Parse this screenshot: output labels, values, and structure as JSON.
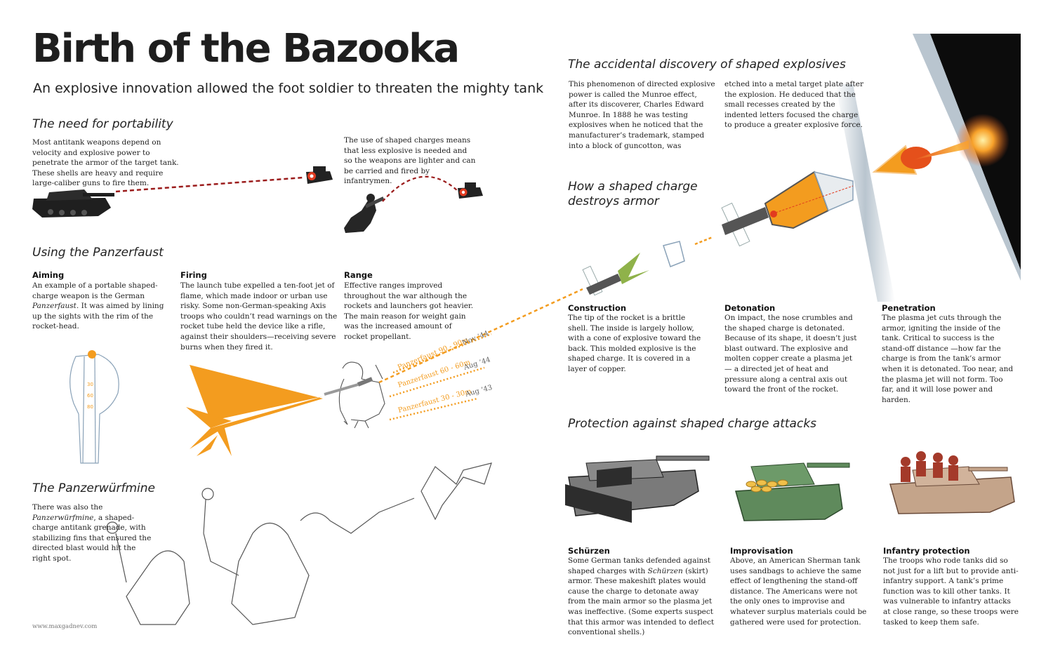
{
  "header": {
    "title": "Birth of the Bazooka",
    "subtitle": "An explosive innovation allowed the foot soldier to threaten the mighty tank"
  },
  "portability": {
    "heading": "The need for portability",
    "text1": "Most antitank weapons depend on velocity and explosive power to penetrate the armor of the target tank. These shells are heavy and require large-caliber guns to fire them.",
    "text2": "The use of shaped charges means that less explosive is needed and so the weapons are lighter and can be carried and fired by infantrymen."
  },
  "panzerfaust": {
    "heading": "Using the Panzerfaust",
    "aiming": {
      "label": "Aiming",
      "text_pre": "An example of a portable shaped-charge weapon is the German ",
      "text_em": "Panzerfaust",
      "text_post": ". It was aimed by lining up the sights with the rim of the rocket-head."
    },
    "firing": {
      "label": "Firing",
      "text": "The launch tube expelled a ten-foot jet of flame, which made indoor or urban use risky. Some non-German-speaking Axis troops who couldn’t read warnings on the rocket tube held the device like a rifle, against their shoulders—receiving severe burns when they fired it."
    },
    "range": {
      "label": "Range",
      "text": "Effective ranges improved throughout the war although the rockets and launchers got heavier. The main reason for weight gain was the increased amount of rocket propellant."
    },
    "range_lines": [
      {
        "label": "Panzerfaust 90 - 90m",
        "date": "Nov ’44"
      },
      {
        "label": "Panzerfaust 60 - 60m",
        "date": "Aug ’44"
      },
      {
        "label": "Panzerfaust 30 - 30m",
        "date": "Aug ’43"
      }
    ],
    "sight_marks": [
      "30",
      "60",
      "80"
    ]
  },
  "wurfmine": {
    "heading": "The Panzerwürfmine",
    "text_pre": "There was also the ",
    "text_em": "Panzerwürfmine",
    "text_post": ", a shaped-charge antitank grenade, with stabilizing fins that ensured the directed blast would hit the right spot."
  },
  "credit": "www.maxgadnev.com",
  "discovery": {
    "heading": "The accidental discovery of shaped explosives",
    "col1": "This phenomenon of directed explosive power is called the Munroe effect, after its discoverer, Charles Edward Munroe. In 1888 he was testing explosives when he noticed that the manufacturer’s trademark, stamped into a block of guncotton, was",
    "col2": "etched into a metal target plate after the explosion. He deduced that the small recesses created by the indented letters focused the charge to produce a greater explosive force."
  },
  "shaped": {
    "heading": "How a shaped charge destroys armor",
    "construction": {
      "label": "Construction",
      "text": "The tip of the rocket is a brittle shell. The inside is largely hollow, with a cone of explosive toward the back. This molded explosive is the shaped charge. It is covered in a layer of copper."
    },
    "detonation": {
      "label": "Detonation",
      "text": "On impact, the nose crumbles and the shaped charge is detonated. Because of its shape, it doesn’t just blast outward. The explosive and molten copper create a plasma jet — a directed jet of heat and pressure along a central axis out toward the front of the rocket."
    },
    "penetration": {
      "label": "Penetration",
      "text": "The plasma jet cuts through the armor, igniting the inside of the tank. Critical to success is the stand-off distance —how far the charge is from the tank’s armor when it is detonated. Too near, and the plasma jet will not form. Too far, and it will lose power and harden."
    }
  },
  "protection": {
    "heading": "Protection against shaped charge attacks",
    "schurzen": {
      "label": "Schürzen",
      "text_pre": "Some German tanks defended against shaped charges with ",
      "text_em": "Schürzen",
      "text_post": " (skirt) armor. These makeshift plates would cause the charge to detonate away from the main armor so the plasma jet was ineffective. (Some experts suspect that this armor was intended to deflect conventional shells.)"
    },
    "improvisation": {
      "label": "Improvisation",
      "text": "Above, an American Sherman tank uses sandbags to achieve the same effect of lengthening the stand-off distance. The Americans were not the only ones to improvise and whatever surplus materials could be gathered were used for protection."
    },
    "infantry": {
      "label": "Infantry protection",
      "text": "The troops who rode tanks did so not just for a lift but to provide anti-infantry support. A tank’s prime function was to kill other tanks. It was vulnerable to infantry attacks at close range, so these troops were tasked to keep them safe."
    }
  },
  "colors": {
    "accent_orange": "#f39c1f",
    "dash_red": "#9b1c1c",
    "tank_grey": "#7a7a7a",
    "sherman_green": "#5f8a5c",
    "t34_tan": "#c4a48a"
  }
}
